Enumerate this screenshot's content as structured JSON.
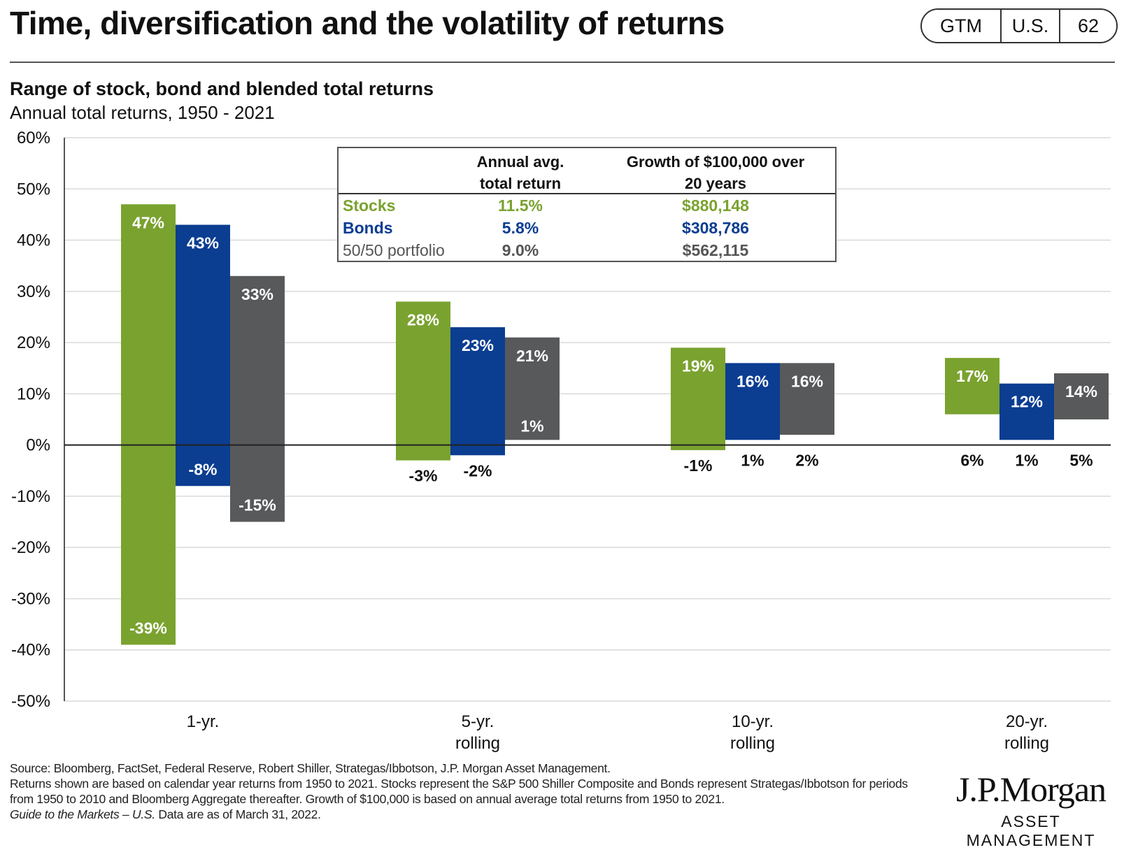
{
  "header": {
    "title": "Time, diversification and the volatility of returns",
    "badge": [
      "GTM",
      "U.S.",
      "62"
    ]
  },
  "subtitle": "Range of stock, bond and blended total returns",
  "subtitle2": "Annual total returns, 1950 - 2021",
  "stats_table": {
    "headers": [
      "",
      "Annual avg.\ntotal return",
      "Growth of $100,000 over\n20 years"
    ],
    "rows": [
      {
        "name": "Stocks",
        "avg": "11.5%",
        "growth": "$880,148",
        "color": "#7aa22f"
      },
      {
        "name": "Bonds",
        "avg": "5.8%",
        "growth": "$308,786",
        "color": "#0b3d91"
      },
      {
        "name": "50/50 portfolio",
        "avg": "9.0%",
        "growth": "$562,115",
        "color": "#555555"
      }
    ]
  },
  "chart_data": {
    "type": "bar",
    "subtype": "floating-range",
    "categories": [
      "1-yr.",
      "5-yr.\nrolling",
      "10-yr.\nrolling",
      "20-yr.\nrolling"
    ],
    "ylim": [
      -50,
      60
    ],
    "yticks": [
      60,
      50,
      40,
      30,
      20,
      10,
      0,
      -10,
      -20,
      -30,
      -40,
      -50
    ],
    "ytick_labels": [
      "60%",
      "50%",
      "40%",
      "30%",
      "20%",
      "10%",
      "0%",
      "-10%",
      "-20%",
      "-30%",
      "-40%",
      "-50%"
    ],
    "grid": true,
    "series": [
      {
        "color": "#7aa22f",
        "high": [
          47,
          28,
          19,
          17
        ],
        "low": [
          -39,
          -3,
          -1,
          6
        ],
        "high_labels": [
          "47%",
          "28%",
          "19%",
          "17%"
        ],
        "low_labels": [
          "-39%",
          "-3%",
          "-1%",
          "6%"
        ]
      },
      {
        "color": "#0b3d91",
        "high": [
          43,
          23,
          16,
          12
        ],
        "low": [
          -8,
          -2,
          1,
          1
        ],
        "high_labels": [
          "43%",
          "23%",
          "16%",
          "12%"
        ],
        "low_labels": [
          "-8%",
          "-2%",
          "1%",
          "1%"
        ]
      },
      {
        "color": "#58595b",
        "high": [
          33,
          21,
          16,
          14
        ],
        "low": [
          -15,
          1,
          2,
          5
        ],
        "high_labels": [
          "33%",
          "21%",
          "16%",
          "14%"
        ],
        "low_labels": [
          "-15%",
          "1%",
          "2%",
          "5%"
        ]
      }
    ]
  },
  "footer": {
    "source": "Source: Bloomberg, FactSet, Federal Reserve, Robert Shiller, Strategas/Ibbotson, J.P. Morgan Asset Management.",
    "note": "Returns shown are based on calendar year returns from 1950 to 2021. Stocks represent the S&P 500 Shiller Composite and Bonds represent Strategas/Ibbotson for periods from 1950 to 2010 and Bloomberg Aggregate thereafter. Growth of $100,000 is based on annual average total returns from 1950 to 2021.",
    "guide": "Guide to the Markets – U.S.",
    "asof": " Data are as of March 31, 2022."
  },
  "logo": {
    "brand": "J.P.Morgan",
    "sub": "ASSET MANAGEMENT"
  }
}
